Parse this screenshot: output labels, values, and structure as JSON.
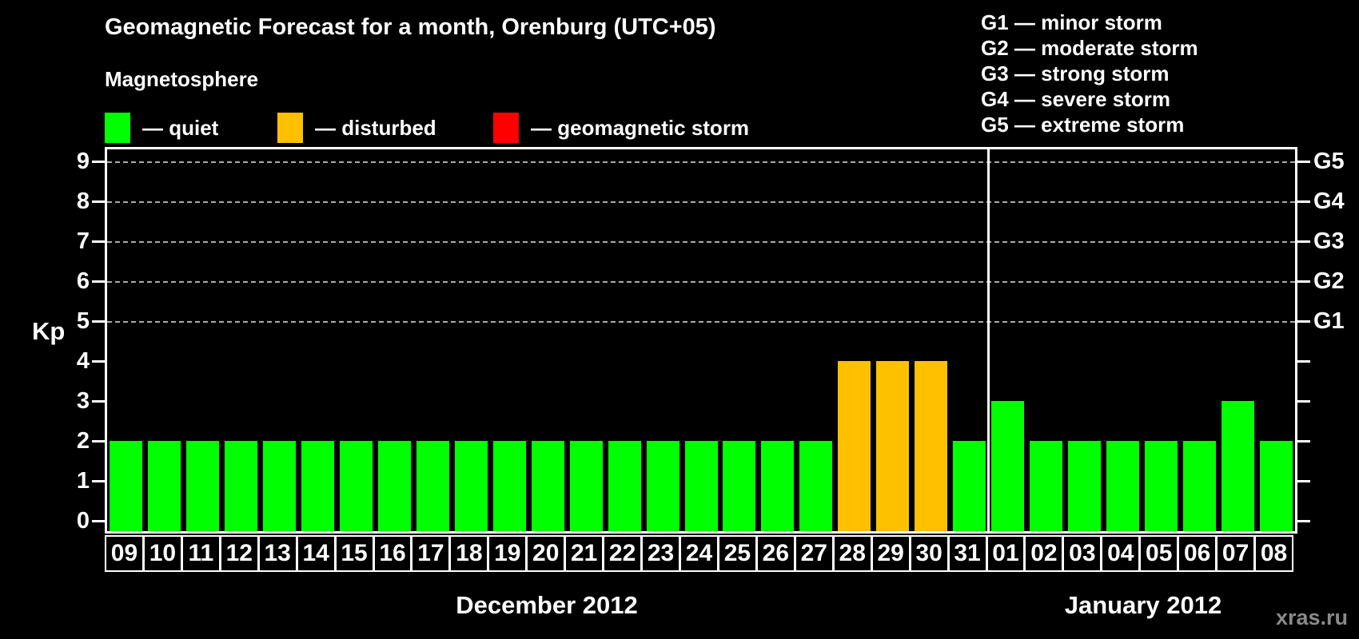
{
  "header": {
    "title": "Geomagnetic Forecast for a month, Orenburg (UTC+05)",
    "subtitle": "Magnetosphere"
  },
  "legend": {
    "items": [
      {
        "label": "— quiet",
        "status": "quiet",
        "color": "#00ff00"
      },
      {
        "label": "— disturbed",
        "status": "disturbed",
        "color": "#ffc000"
      },
      {
        "label": "— geomagnetic storm",
        "status": "storm",
        "color": "#ff0000"
      }
    ]
  },
  "storm_scale_legend": {
    "items": [
      "G1 — minor storm",
      "G2 — moderate storm",
      "G3 — strong storm",
      "G4 — severe storm",
      "G5 — extreme storm"
    ]
  },
  "watermark": "xras.ru",
  "chart_data": {
    "type": "bar",
    "title": "Geomagnetic Forecast for a month, Orenburg (UTC+05)",
    "ylabel": "Kp",
    "ylim": [
      0,
      9
    ],
    "yticks": [
      0,
      1,
      2,
      3,
      4,
      5,
      6,
      7,
      8,
      9
    ],
    "grid": "dashed horizontal lines at Kp 5-9 only",
    "right_axis": {
      "labels": [
        "G1",
        "G2",
        "G3",
        "G4",
        "G5"
      ],
      "at_kp": [
        5,
        6,
        7,
        8,
        9
      ]
    },
    "colors": {
      "quiet": "#00ff00",
      "disturbed": "#ffc000",
      "storm": "#ff0000"
    },
    "categories": [
      "09",
      "10",
      "11",
      "12",
      "13",
      "14",
      "15",
      "16",
      "17",
      "18",
      "19",
      "20",
      "21",
      "22",
      "23",
      "24",
      "25",
      "26",
      "27",
      "28",
      "29",
      "30",
      "31",
      "01",
      "02",
      "03",
      "04",
      "05",
      "06",
      "07",
      "08"
    ],
    "values": [
      2,
      2,
      2,
      2,
      2,
      2,
      2,
      2,
      2,
      2,
      2,
      2,
      2,
      2,
      2,
      2,
      2,
      2,
      2,
      4,
      4,
      4,
      2,
      3,
      2,
      2,
      2,
      2,
      2,
      3,
      2
    ],
    "statuses": [
      "quiet",
      "quiet",
      "quiet",
      "quiet",
      "quiet",
      "quiet",
      "quiet",
      "quiet",
      "quiet",
      "quiet",
      "quiet",
      "quiet",
      "quiet",
      "quiet",
      "quiet",
      "quiet",
      "quiet",
      "quiet",
      "quiet",
      "disturbed",
      "disturbed",
      "disturbed",
      "quiet",
      "quiet",
      "quiet",
      "quiet",
      "quiet",
      "quiet",
      "quiet",
      "quiet",
      "quiet"
    ],
    "xlabel_groups": [
      {
        "label": "December 2012",
        "count": 23
      },
      {
        "label": "January 2012",
        "count": 8
      }
    ]
  }
}
